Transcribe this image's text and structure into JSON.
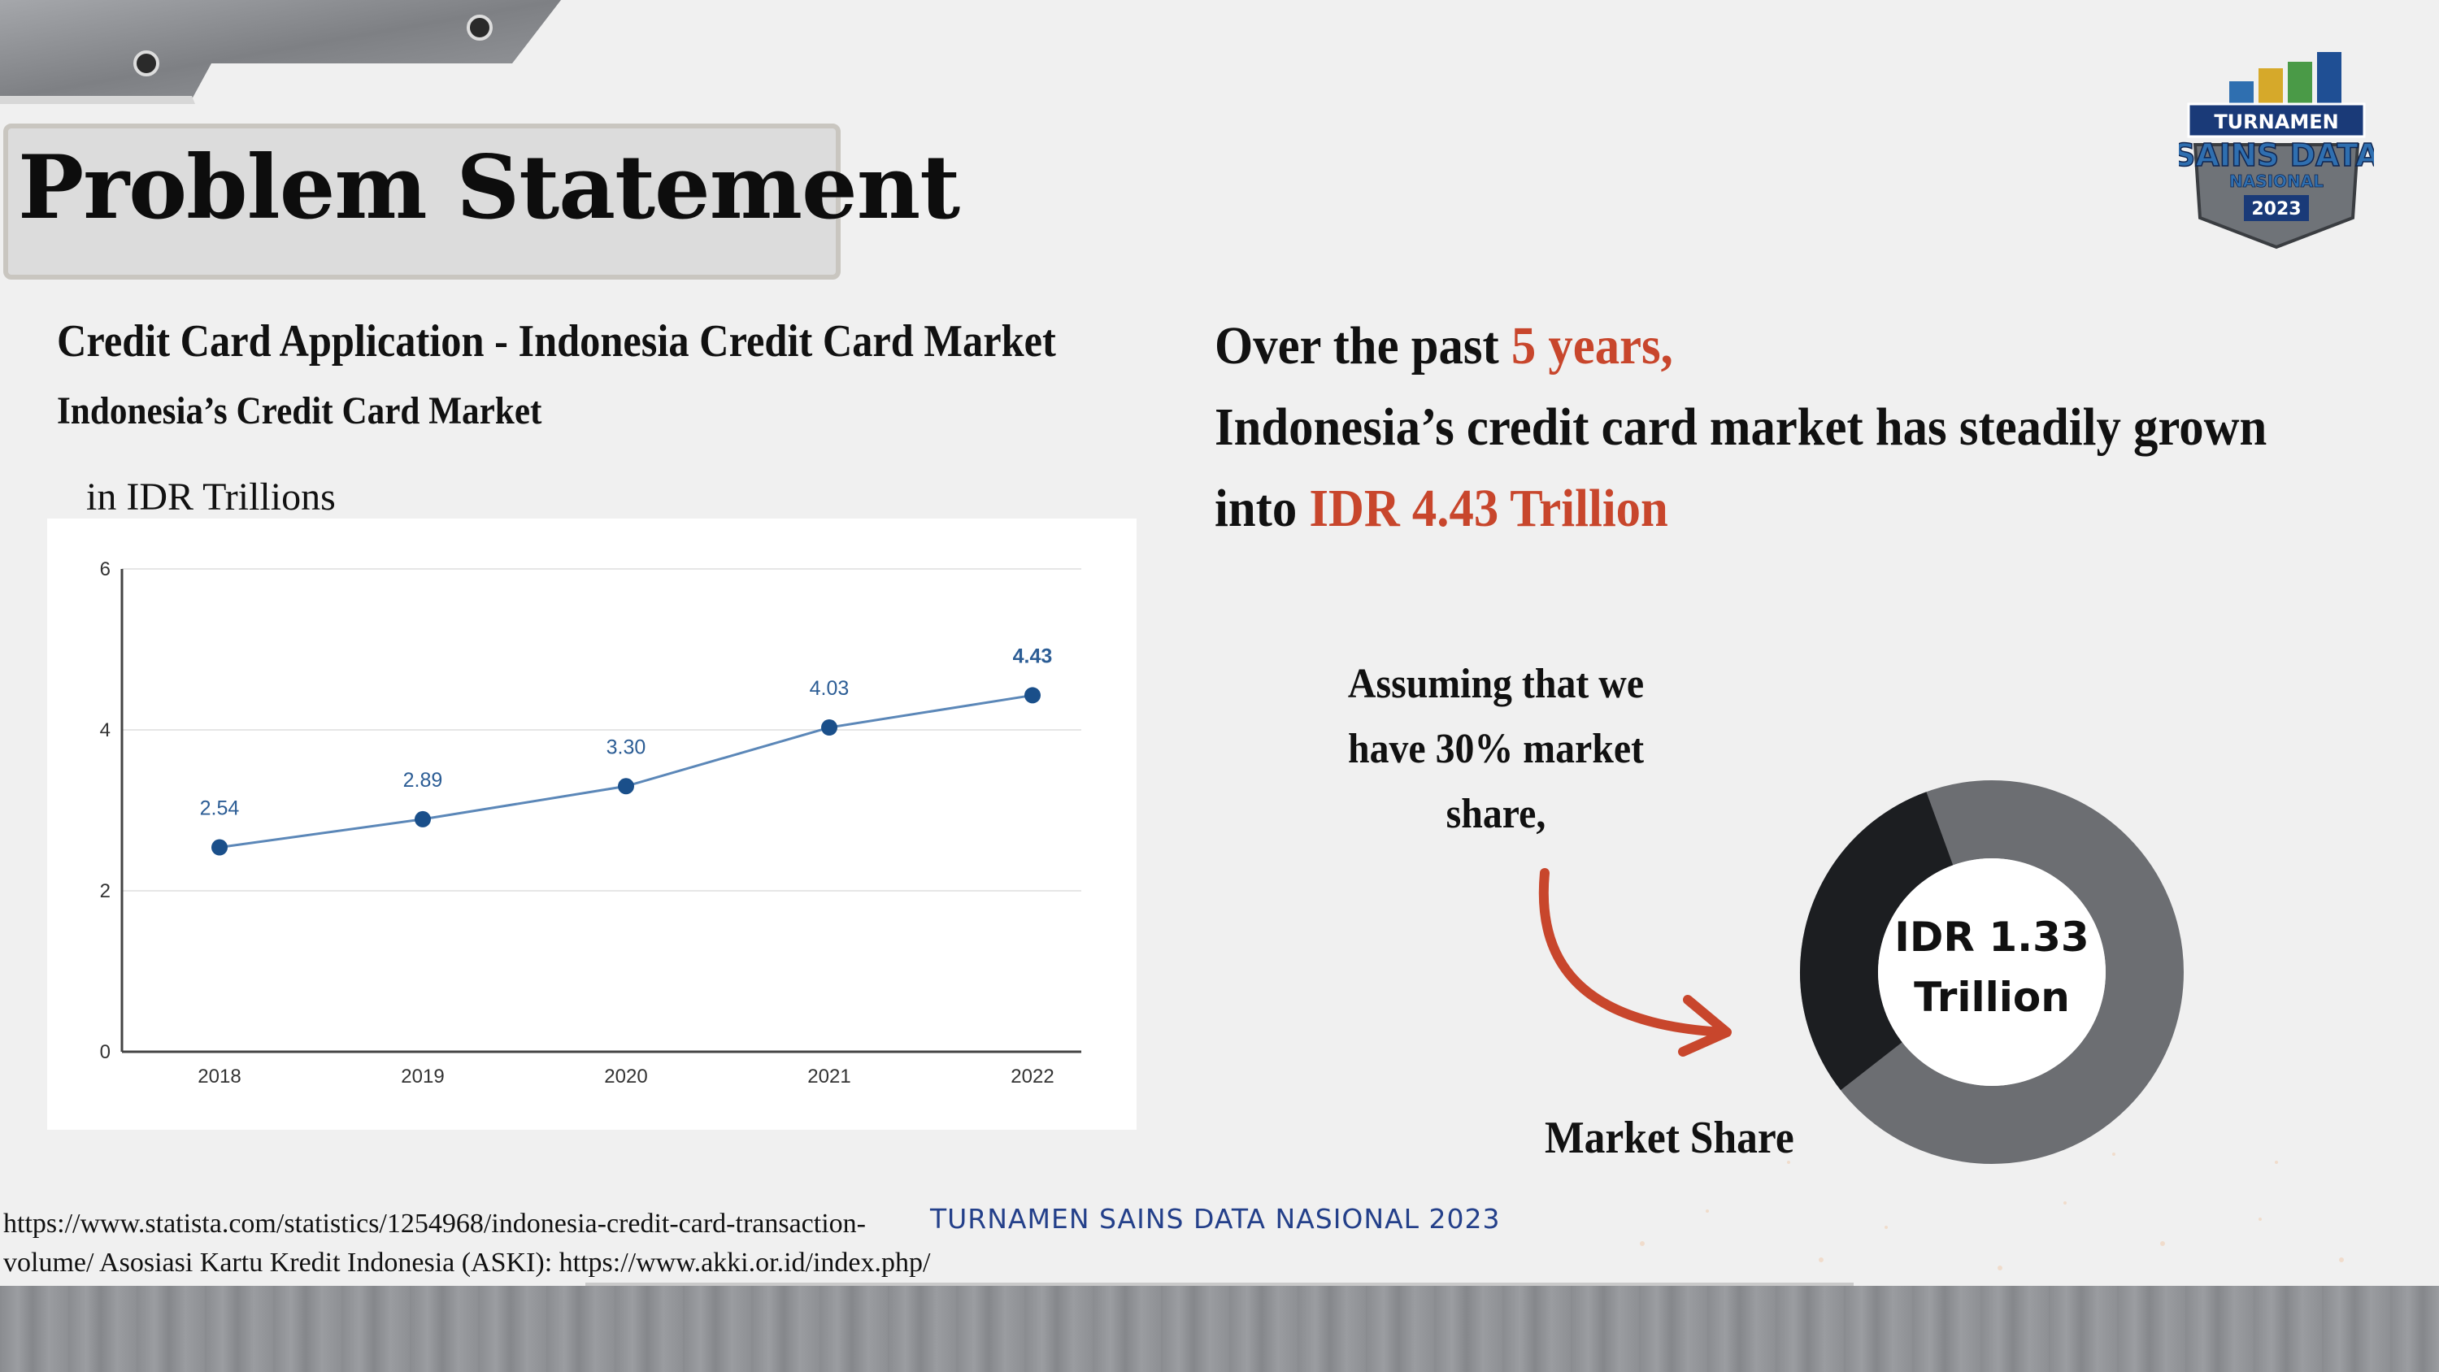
{
  "slide": {
    "title": "Problem Statement",
    "logo": {
      "icon": "turnamen-sains-data-logo",
      "line1": "TURNAMEN",
      "line2": "SAINS DATA",
      "line3": "NASIONAL",
      "year": "2023"
    }
  },
  "left": {
    "heading": "Credit Card Application - Indonesia Credit Card Market",
    "subheading": "Indonesia’s Credit Card Market",
    "unit": "in IDR Trillions"
  },
  "chart_data": {
    "type": "line",
    "x": [
      "2018",
      "2019",
      "2020",
      "2021",
      "2022"
    ],
    "series": [
      {
        "values": [
          2.54,
          2.89,
          3.3,
          4.03,
          4.43
        ],
        "labels": [
          "2.54",
          "2.89",
          "3.30",
          "4.03",
          "4.43"
        ]
      }
    ],
    "yticks": [
      "0",
      "2",
      "4",
      "6"
    ],
    "ylim": [
      0,
      6
    ],
    "grid": true,
    "line_color": "#5b87b8",
    "point_color": "#1a4f8a",
    "label_color": "#2c5d95"
  },
  "right": {
    "line1_prefix": "Over the past ",
    "line1_accent": "5 years,",
    "line2": " Indonesia’s credit card market has steadily grown",
    "line3_prefix": "into ",
    "line3_accent": "IDR 4.43 Trillion",
    "accent_color": "#c8462c"
  },
  "assumption": {
    "lines": [
      "Assuming that we",
      "have 30% market",
      "share,"
    ]
  },
  "donut": {
    "label_line1": "IDR 1.33",
    "label_line2": "Trillion",
    "caption": "Market Share",
    "share_percent": 30,
    "share_color": "#1c1e21",
    "rest_color": "#6c6e72"
  },
  "footer": {
    "source_line1": "https://www.statista.com/statistics/1254968/indonesia-credit-card-transaction-",
    "source_line2": "volume/ Asosiasi Kartu Kredit Indonesia (ASKI): https://www.akki.or.id/index.php/",
    "event": "TURNAMEN SAINS DATA NASIONAL 2023"
  }
}
